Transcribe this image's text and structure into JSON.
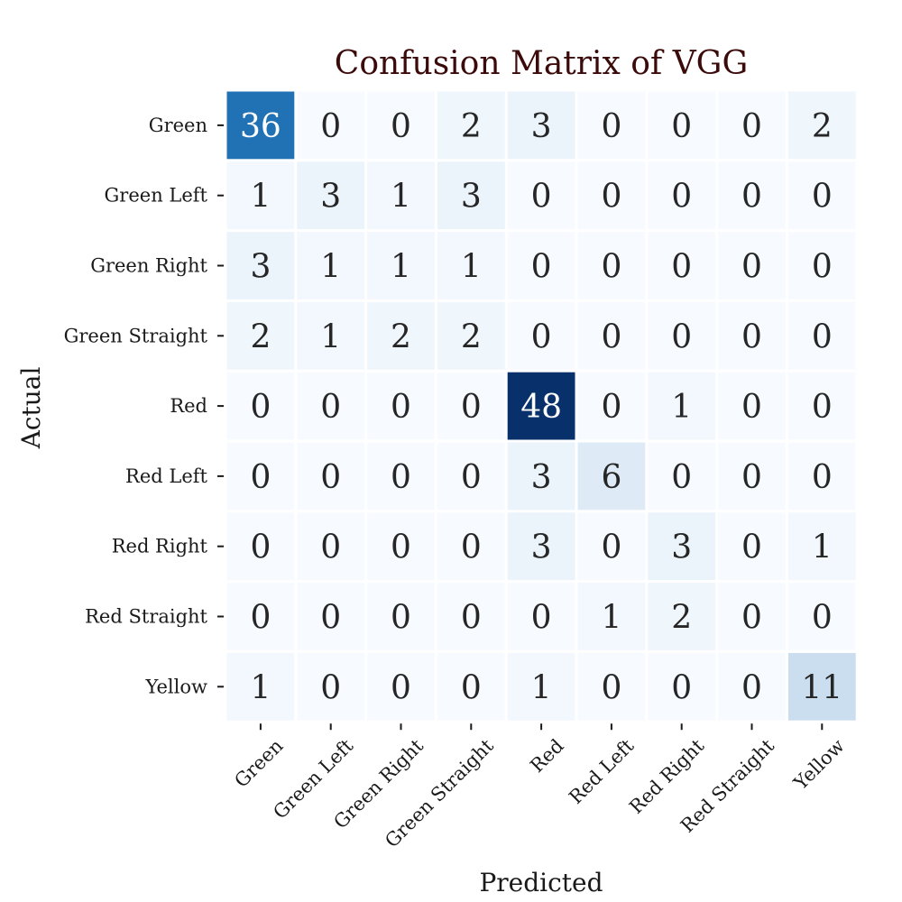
{
  "chart_data": {
    "type": "heatmap",
    "title": "Confusion Matrix of VGG",
    "xlabel": "Predicted",
    "ylabel": "Actual",
    "x_categories": [
      "Green",
      "Green Left",
      "Green Right",
      "Green Straight",
      "Red",
      "Red Left",
      "Red Right",
      "Red Straight",
      "Yellow"
    ],
    "y_categories": [
      "Green",
      "Green Left",
      "Green Right",
      "Green Straight",
      "Red",
      "Red Left",
      "Red Right",
      "Red Straight",
      "Yellow"
    ],
    "values": [
      [
        36,
        0,
        0,
        2,
        3,
        0,
        0,
        0,
        2
      ],
      [
        1,
        3,
        1,
        3,
        0,
        0,
        0,
        0,
        0
      ],
      [
        3,
        1,
        1,
        1,
        0,
        0,
        0,
        0,
        0
      ],
      [
        2,
        1,
        2,
        2,
        0,
        0,
        0,
        0,
        0
      ],
      [
        0,
        0,
        0,
        0,
        48,
        0,
        1,
        0,
        0
      ],
      [
        0,
        0,
        0,
        0,
        3,
        6,
        0,
        0,
        0
      ],
      [
        0,
        0,
        0,
        0,
        3,
        0,
        3,
        0,
        1
      ],
      [
        0,
        0,
        0,
        0,
        0,
        1,
        2,
        0,
        0
      ],
      [
        1,
        0,
        0,
        0,
        1,
        0,
        0,
        0,
        11
      ]
    ],
    "colormap": "Blues",
    "vmin": 0,
    "vmax": 48,
    "colorbar": false,
    "annotated": true,
    "title_color": "#3b0a0a"
  }
}
